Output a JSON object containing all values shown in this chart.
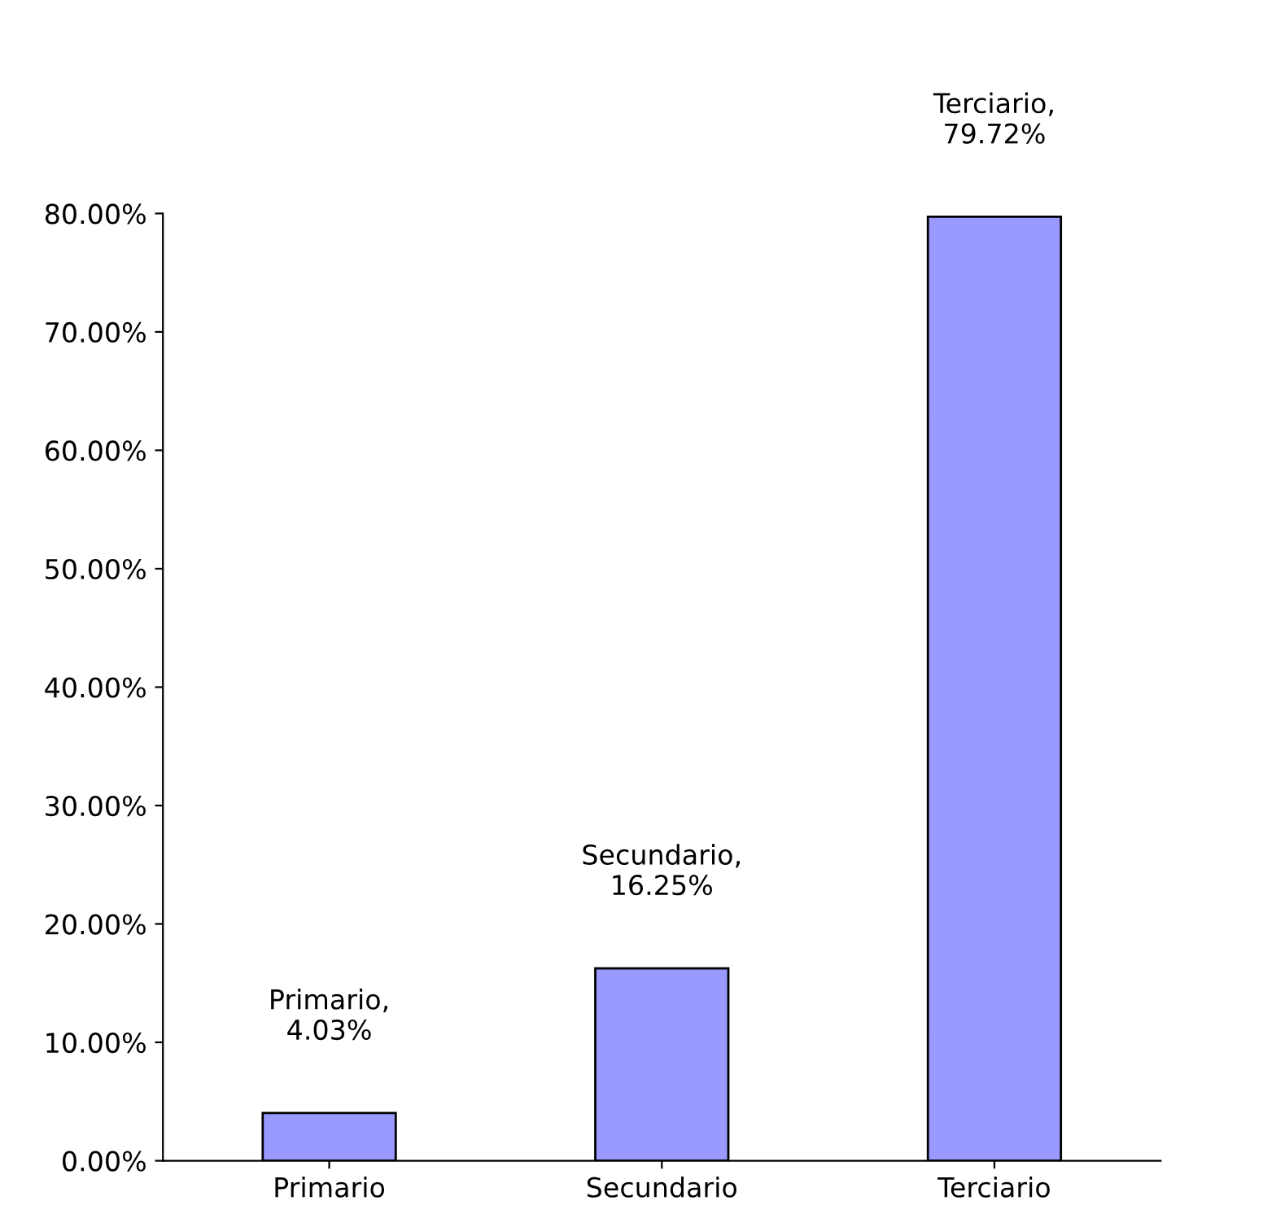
{
  "chart_data": {
    "type": "bar",
    "categories": [
      "Primario",
      "Secundario",
      "Terciario"
    ],
    "values": [
      4.03,
      16.25,
      79.72
    ],
    "color": "#9999ff",
    "value_labels": [
      "Primario,\n4.03%",
      "Secundario,\n16.25%",
      "Terciario,\n79.72%"
    ],
    "ylim": [
      0,
      80
    ],
    "yticks": [
      {
        "value": 0,
        "label": "0.00%"
      },
      {
        "value": 10,
        "label": "10.00%"
      },
      {
        "value": 20,
        "label": "20.00%"
      },
      {
        "value": 30,
        "label": "30.00%"
      },
      {
        "value": 40,
        "label": "40.00%"
      },
      {
        "value": 50,
        "label": "50.00%"
      },
      {
        "value": 60,
        "label": "60.00%"
      },
      {
        "value": 70,
        "label": "70.00%"
      },
      {
        "value": 80,
        "label": "80.00%"
      }
    ],
    "grid": false
  }
}
